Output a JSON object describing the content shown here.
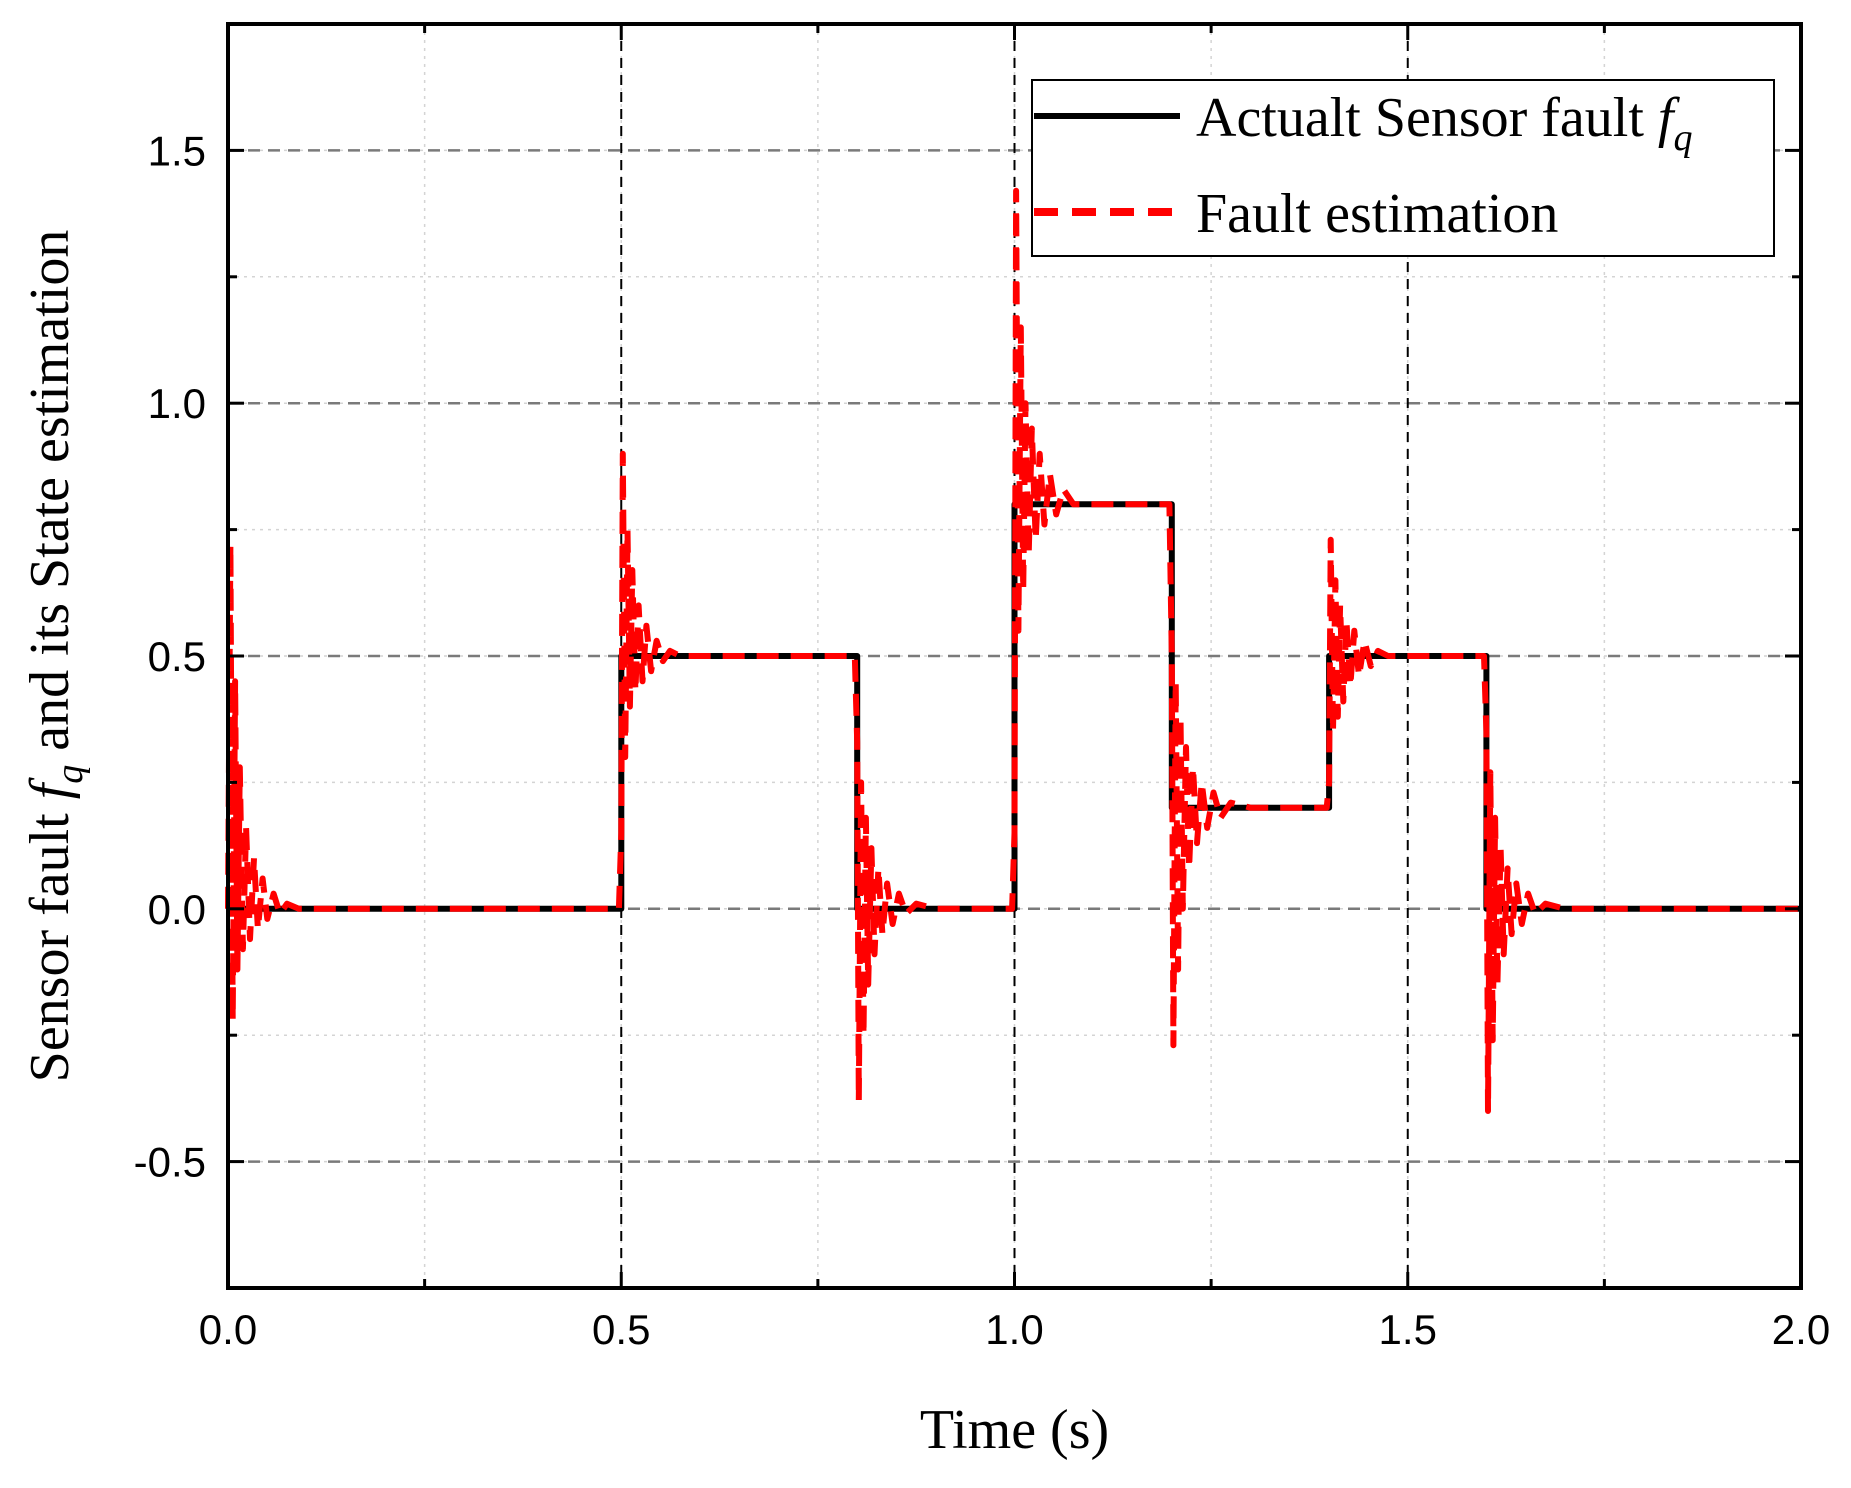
{
  "chart_data": {
    "type": "line",
    "title": "",
    "xlabel": "Time (s)",
    "ylabel": {
      "prefix": "Sensor fault ",
      "symbol": "f",
      "subscript": "q",
      "suffix": " and its State estimation"
    },
    "xlim": [
      0.0,
      2.0
    ],
    "ylim": [
      -0.75,
      1.75
    ],
    "x_ticks": [
      0.0,
      0.5,
      1.0,
      1.5,
      2.0
    ],
    "x_tick_labels": [
      "0.0",
      "0.5",
      "1.0",
      "1.5",
      "2.0"
    ],
    "y_ticks": [
      -0.5,
      0.0,
      0.5,
      1.0,
      1.5
    ],
    "y_tick_labels": [
      "-0.5",
      "0.0",
      "0.5",
      "1.0",
      "1.5"
    ],
    "grid": true,
    "vertical_markers": [
      0.5,
      1.0,
      1.5
    ],
    "legend_position": "top-right",
    "series": [
      {
        "name": "Actualt Sensor fault",
        "name_symbol": "f",
        "name_subscript": "q",
        "color": "#000000",
        "style": "solid",
        "x": [
          0.0,
          0.5,
          0.5,
          0.8,
          0.8,
          1.0,
          1.0,
          1.2,
          1.2,
          1.4,
          1.4,
          1.6,
          1.6,
          2.0
        ],
        "values": [
          0.0,
          0.0,
          0.5,
          0.5,
          0.0,
          0.0,
          0.8,
          0.8,
          0.2,
          0.2,
          0.5,
          0.5,
          0.0,
          0.0
        ]
      },
      {
        "name": "Fault estimation",
        "color": "#ff0000",
        "style": "dashed",
        "x": [
          0.0,
          0.003,
          0.006,
          0.009,
          0.012,
          0.015,
          0.019,
          0.023,
          0.028,
          0.033,
          0.038,
          0.044,
          0.05,
          0.058,
          0.066,
          0.075,
          0.09,
          0.497,
          0.5,
          0.502,
          0.505,
          0.508,
          0.511,
          0.514,
          0.518,
          0.522,
          0.527,
          0.532,
          0.538,
          0.545,
          0.553,
          0.562,
          0.575,
          0.6,
          0.797,
          0.8,
          0.802,
          0.805,
          0.808,
          0.811,
          0.814,
          0.818,
          0.822,
          0.827,
          0.832,
          0.838,
          0.845,
          0.853,
          0.862,
          0.875,
          0.9,
          0.997,
          1.0,
          1.002,
          1.005,
          1.008,
          1.011,
          1.014,
          1.018,
          1.022,
          1.027,
          1.032,
          1.038,
          1.045,
          1.053,
          1.062,
          1.075,
          1.1,
          1.197,
          1.2,
          1.202,
          1.205,
          1.208,
          1.211,
          1.214,
          1.218,
          1.222,
          1.227,
          1.232,
          1.238,
          1.245,
          1.253,
          1.262,
          1.275,
          1.3,
          1.397,
          1.4,
          1.402,
          1.405,
          1.408,
          1.411,
          1.414,
          1.418,
          1.422,
          1.427,
          1.432,
          1.438,
          1.445,
          1.453,
          1.462,
          1.475,
          1.5,
          1.597,
          1.6,
          1.602,
          1.605,
          1.608,
          1.611,
          1.614,
          1.618,
          1.622,
          1.627,
          1.632,
          1.638,
          1.645,
          1.653,
          1.662,
          1.675,
          1.7,
          2.0
        ],
        "values": [
          0.0,
          0.72,
          -0.22,
          0.45,
          -0.12,
          0.28,
          -0.08,
          0.16,
          -0.06,
          0.1,
          -0.04,
          0.06,
          -0.02,
          0.03,
          -0.01,
          0.01,
          0.0,
          0.0,
          0.15,
          0.9,
          0.3,
          0.75,
          0.4,
          0.67,
          0.43,
          0.6,
          0.45,
          0.56,
          0.47,
          0.53,
          0.49,
          0.51,
          0.5,
          0.5,
          0.5,
          0.33,
          -0.38,
          0.25,
          -0.25,
          0.18,
          -0.15,
          0.12,
          -0.09,
          0.08,
          -0.05,
          0.05,
          -0.03,
          0.03,
          -0.01,
          0.01,
          0.0,
          0.0,
          0.15,
          1.42,
          0.55,
          1.15,
          0.63,
          1.0,
          0.7,
          0.95,
          0.73,
          0.9,
          0.76,
          0.86,
          0.78,
          0.83,
          0.8,
          0.8,
          0.8,
          0.5,
          -0.27,
          0.45,
          -0.12,
          0.38,
          0.0,
          0.32,
          0.08,
          0.28,
          0.13,
          0.25,
          0.16,
          0.23,
          0.18,
          0.21,
          0.2,
          0.2,
          0.25,
          0.73,
          0.35,
          0.65,
          0.38,
          0.6,
          0.41,
          0.57,
          0.44,
          0.55,
          0.46,
          0.53,
          0.48,
          0.51,
          0.5,
          0.5,
          0.5,
          0.35,
          -0.4,
          0.27,
          -0.26,
          0.18,
          -0.15,
          0.12,
          -0.09,
          0.08,
          -0.05,
          0.05,
          -0.03,
          0.03,
          -0.01,
          0.01,
          0.0,
          0.0
        ]
      }
    ]
  }
}
